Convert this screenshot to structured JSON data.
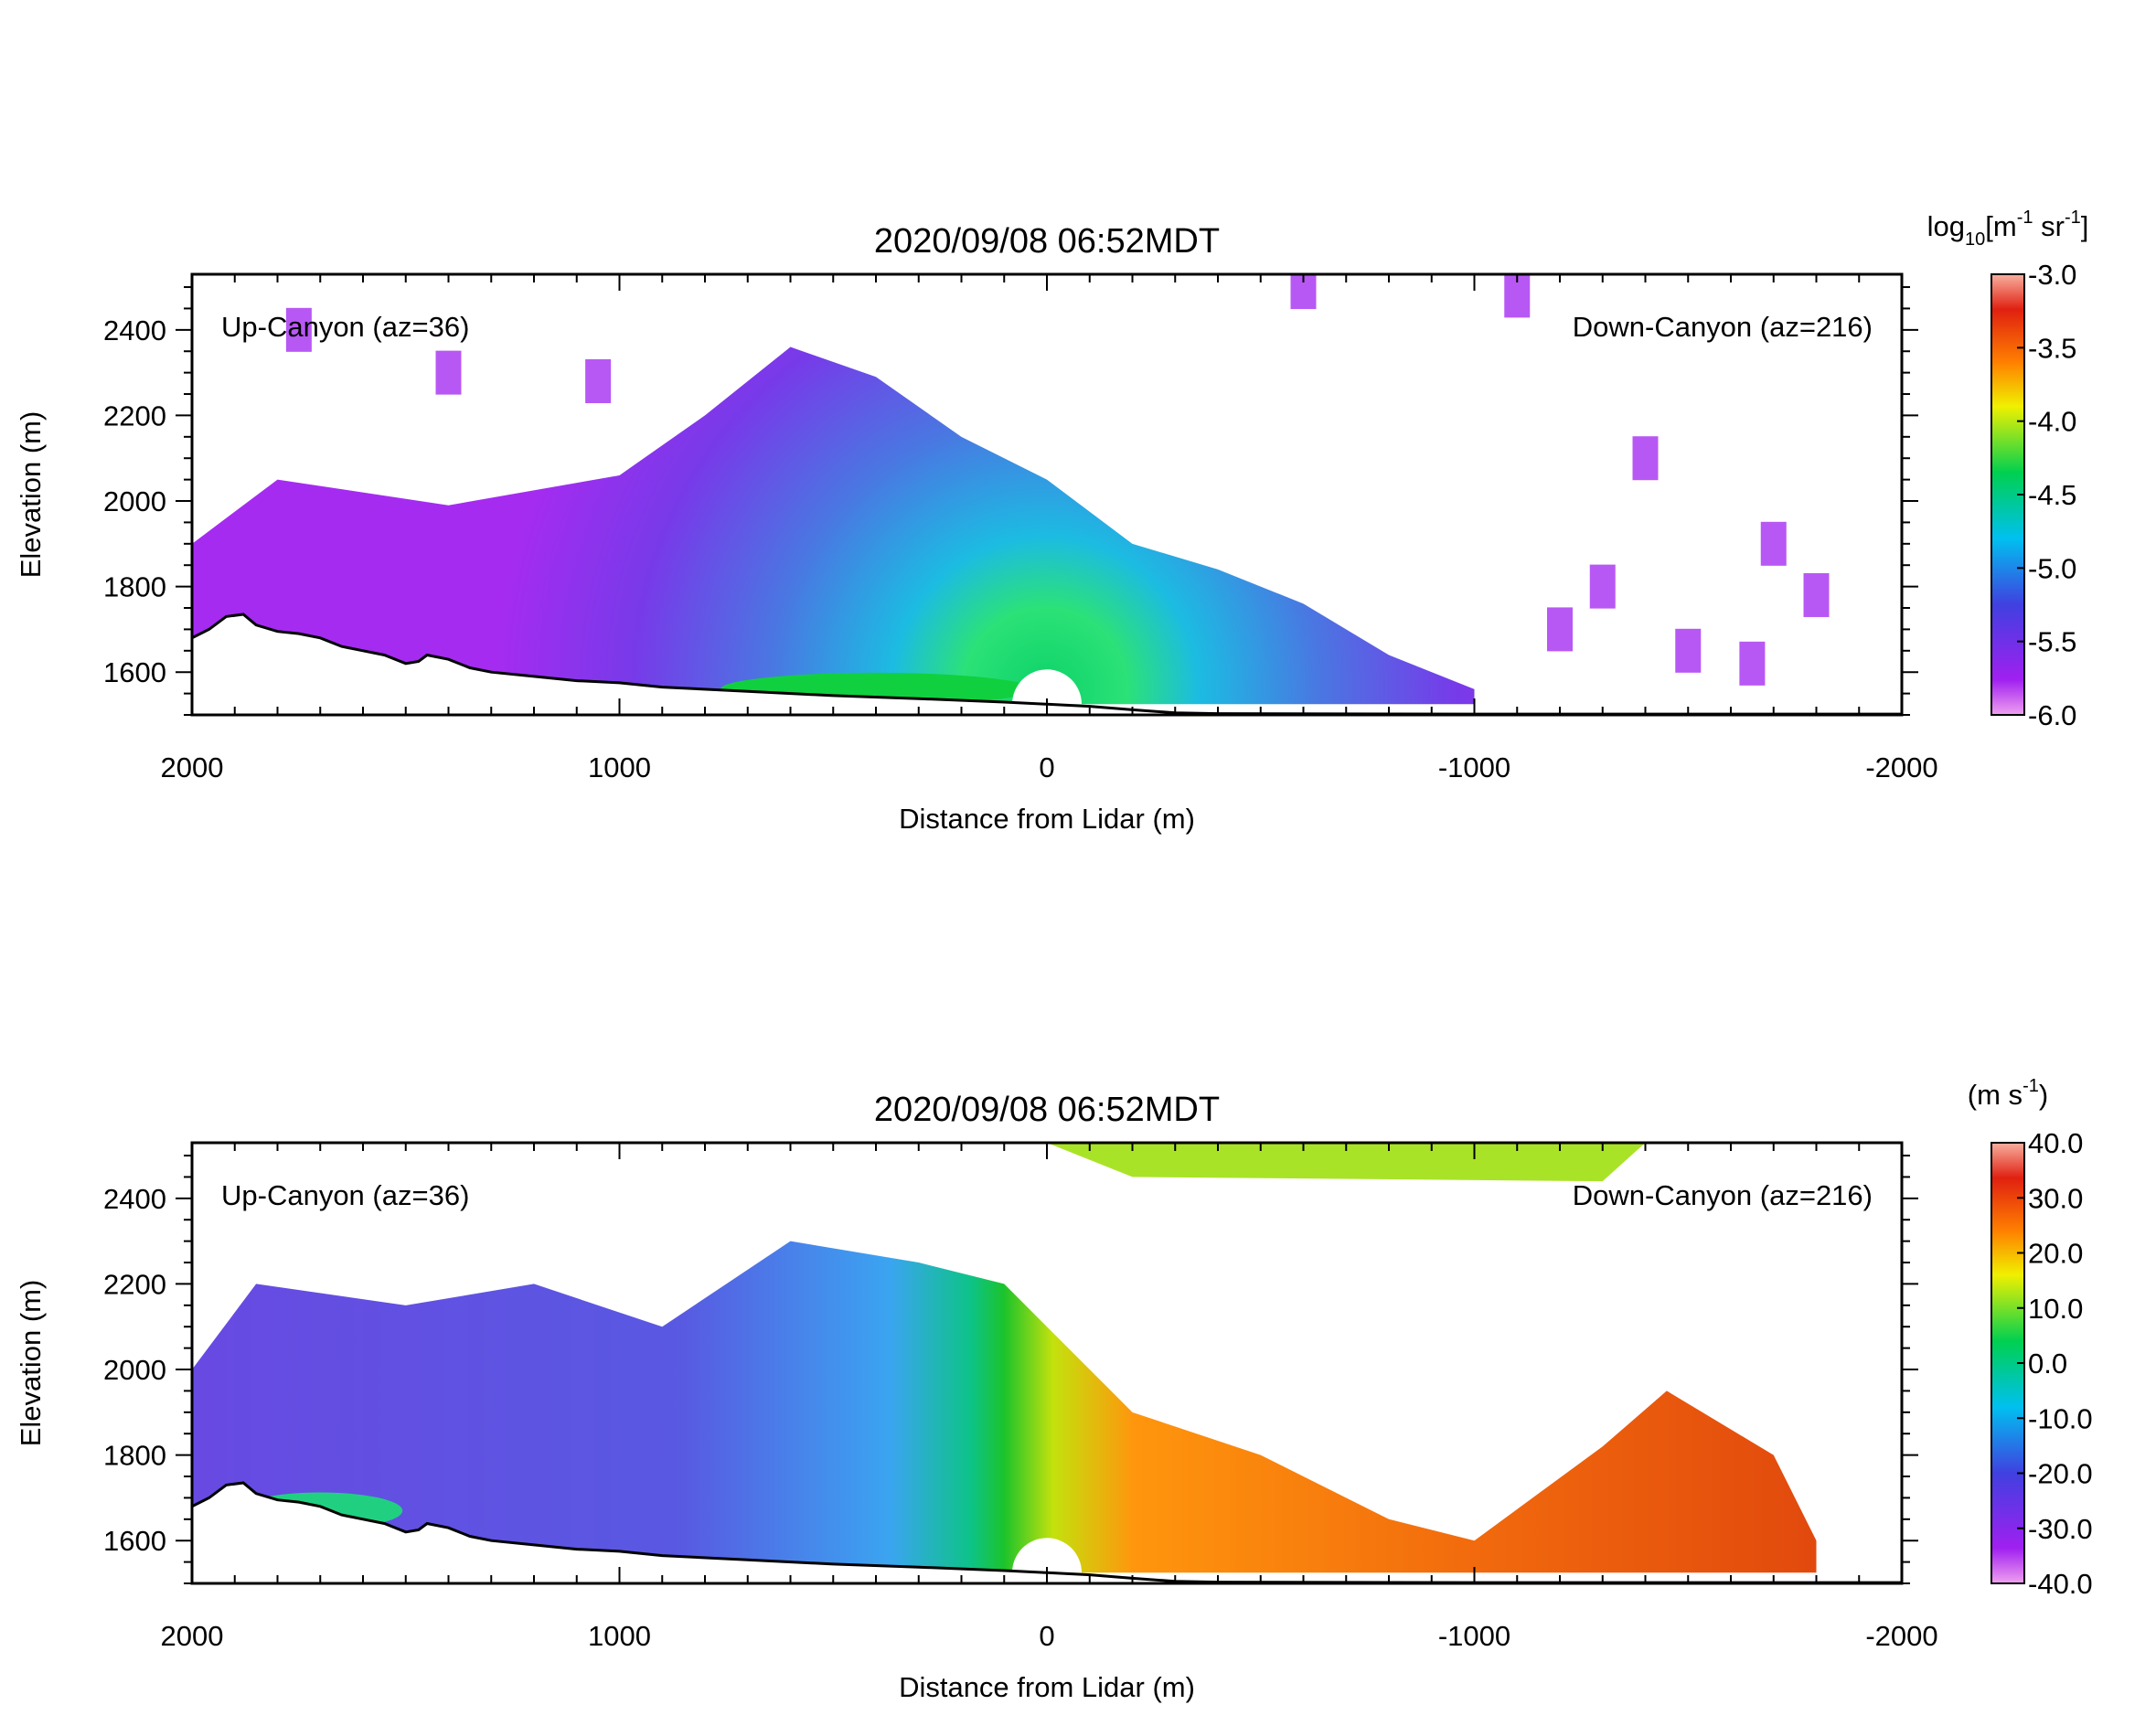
{
  "chart_data": [
    {
      "type": "heatmap",
      "title": "2020/09/08 06:52MDT",
      "xlabel": "Distance from Lidar (m)",
      "ylabel": "Elevation (m)",
      "xlim": [
        2000,
        -2000
      ],
      "ylim": [
        1500,
        2530
      ],
      "xticks": [
        "2000",
        "1000",
        "0",
        "-1000",
        "-2000"
      ],
      "yticks": [
        "1600",
        "1800",
        "2000",
        "2200",
        "2400"
      ],
      "annotation_left": "Up-Canyon (az=36)",
      "annotation_right": "Down-Canyon (az=216)",
      "colorbar": {
        "label_parts": [
          "log",
          "10",
          "[m",
          "-1",
          " sr",
          "-1",
          "]"
        ],
        "ticks": [
          "-3.0",
          "-3.5",
          "-4.0",
          "-4.5",
          "-5.0",
          "-5.5",
          "-6.0"
        ],
        "range": [
          -6.0,
          -3.0
        ]
      },
      "field": "backscatter",
      "terrain": [
        [
          2000,
          1680
        ],
        [
          1960,
          1700
        ],
        [
          1920,
          1730
        ],
        [
          1880,
          1735
        ],
        [
          1850,
          1710
        ],
        [
          1800,
          1695
        ],
        [
          1750,
          1690
        ],
        [
          1700,
          1680
        ],
        [
          1650,
          1660
        ],
        [
          1600,
          1650
        ],
        [
          1550,
          1640
        ],
        [
          1500,
          1620
        ],
        [
          1470,
          1625
        ],
        [
          1450,
          1640
        ],
        [
          1400,
          1630
        ],
        [
          1350,
          1610
        ],
        [
          1300,
          1600
        ],
        [
          1200,
          1590
        ],
        [
          1100,
          1580
        ],
        [
          1000,
          1575
        ],
        [
          900,
          1565
        ],
        [
          700,
          1555
        ],
        [
          500,
          1545
        ],
        [
          300,
          1538
        ],
        [
          100,
          1530
        ],
        [
          0,
          1525
        ],
        [
          -100,
          1520
        ],
        [
          -200,
          1512
        ],
        [
          -300,
          1505
        ],
        [
          -400,
          1503
        ],
        [
          -1000,
          1502
        ],
        [
          -2000,
          1502
        ]
      ]
    },
    {
      "type": "heatmap",
      "title": "2020/09/08 06:52MDT",
      "xlabel": "Distance from Lidar (m)",
      "ylabel": "Elevation (m)",
      "xlim": [
        2000,
        -2000
      ],
      "ylim": [
        1500,
        2530
      ],
      "xticks": [
        "2000",
        "1000",
        "0",
        "-1000",
        "-2000"
      ],
      "yticks": [
        "1600",
        "1800",
        "2000",
        "2200",
        "2400"
      ],
      "annotation_left": "Up-Canyon (az=36)",
      "annotation_right": "Down-Canyon (az=216)",
      "colorbar": {
        "label_parts": [
          "(m s",
          "-1",
          ")"
        ],
        "ticks": [
          "40.0",
          "30.0",
          "20.0",
          "10.0",
          "0.0",
          "-10.0",
          "-20.0",
          "-30.0",
          "-40.0"
        ],
        "range": [
          -40.0,
          40.0
        ]
      },
      "field": "radial_velocity",
      "terrain": [
        [
          2000,
          1680
        ],
        [
          1960,
          1700
        ],
        [
          1920,
          1730
        ],
        [
          1880,
          1735
        ],
        [
          1850,
          1710
        ],
        [
          1800,
          1695
        ],
        [
          1750,
          1690
        ],
        [
          1700,
          1680
        ],
        [
          1650,
          1660
        ],
        [
          1600,
          1650
        ],
        [
          1550,
          1640
        ],
        [
          1500,
          1620
        ],
        [
          1470,
          1625
        ],
        [
          1450,
          1640
        ],
        [
          1400,
          1630
        ],
        [
          1350,
          1610
        ],
        [
          1300,
          1600
        ],
        [
          1200,
          1590
        ],
        [
          1100,
          1580
        ],
        [
          1000,
          1575
        ],
        [
          900,
          1565
        ],
        [
          700,
          1555
        ],
        [
          500,
          1545
        ],
        [
          300,
          1538
        ],
        [
          100,
          1530
        ],
        [
          0,
          1525
        ],
        [
          -100,
          1520
        ],
        [
          -200,
          1512
        ],
        [
          -300,
          1505
        ],
        [
          -400,
          1503
        ],
        [
          -1000,
          1502
        ],
        [
          -2000,
          1502
        ]
      ]
    }
  ]
}
